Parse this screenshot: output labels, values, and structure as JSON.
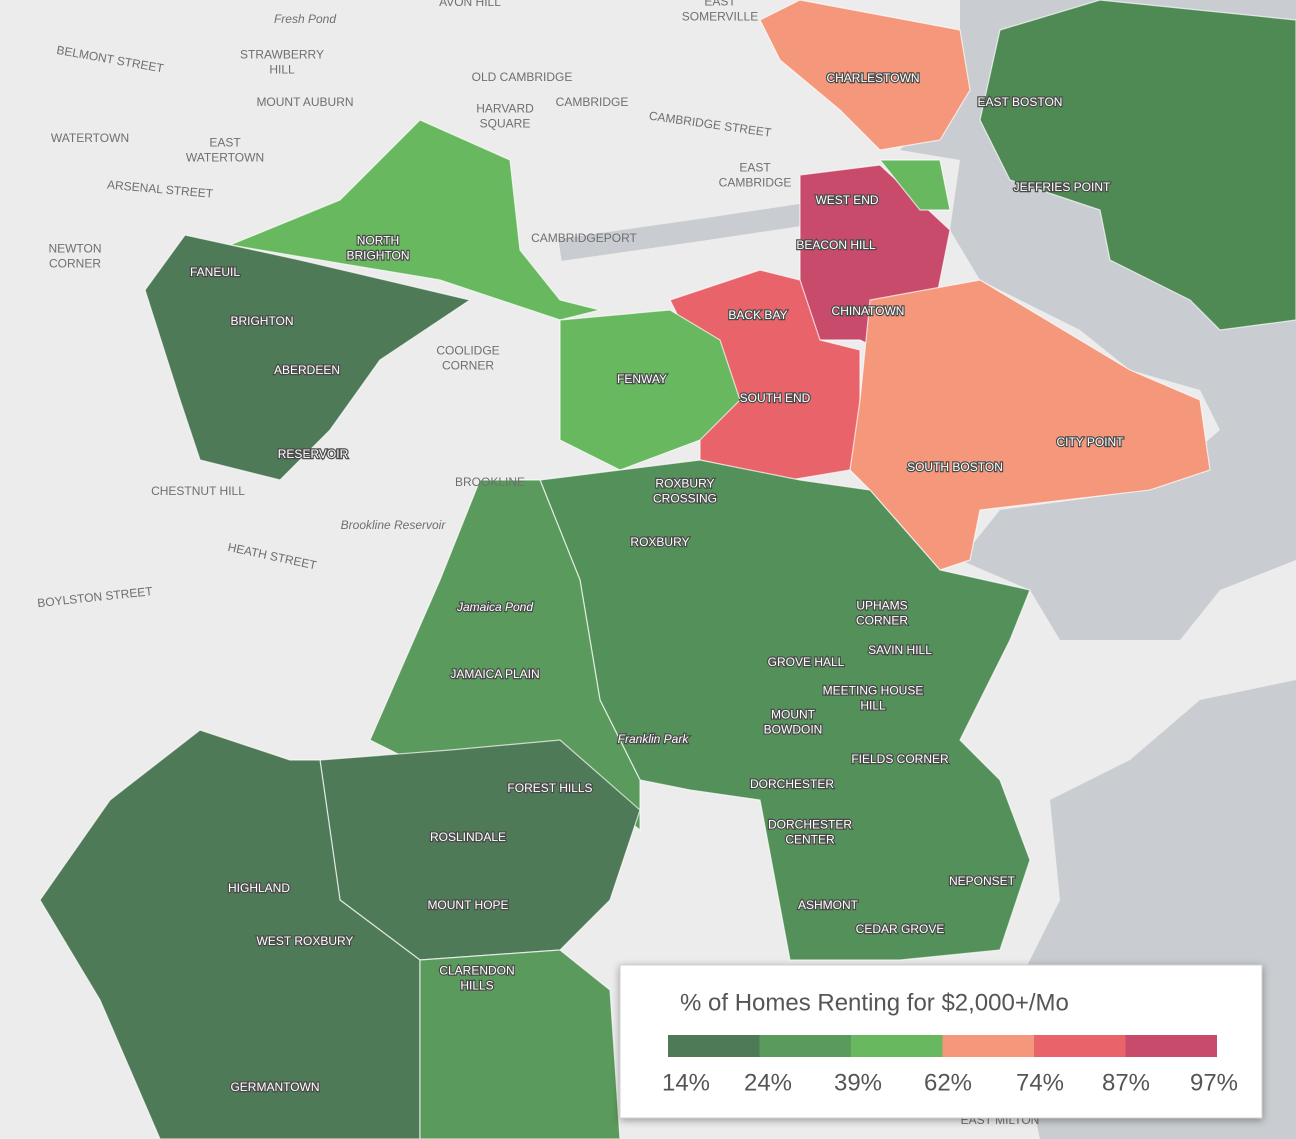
{
  "map_labels": [
    {
      "lines": [
        "AVON HILL"
      ]
    },
    {
      "lines": [
        "EAST",
        "SOMERVILLE"
      ]
    },
    {
      "lines": [
        "Fresh Pond"
      ]
    },
    {
      "lines": [
        "BELMONT STREET"
      ]
    },
    {
      "lines": [
        "STRAWBERRY",
        "HILL"
      ]
    },
    {
      "lines": [
        "OLD CAMBRIDGE"
      ]
    },
    {
      "lines": [
        "MOUNT AUBURN"
      ]
    },
    {
      "lines": [
        "HARVARD",
        "SQUARE"
      ]
    },
    {
      "lines": [
        "CAMBRIDGE"
      ]
    },
    {
      "lines": [
        "CAMBRIDGE STREET"
      ]
    },
    {
      "lines": [
        "WATERTOWN"
      ]
    },
    {
      "lines": [
        "EAST",
        "WATERTOWN"
      ]
    },
    {
      "lines": [
        "EAST",
        "CAMBRIDGE"
      ]
    },
    {
      "lines": [
        "ARSENAL STREET"
      ]
    },
    {
      "lines": [
        "NEWTON",
        "CORNER"
      ]
    },
    {
      "lines": [
        "CAMBRIDGEPORT"
      ]
    },
    {
      "lines": [
        "COOLIDGE",
        "CORNER"
      ]
    },
    {
      "lines": [
        "BROOKLINE"
      ]
    },
    {
      "lines": [
        "CHESTNUT HILL"
      ]
    },
    {
      "lines": [
        "Brookline Reservoir"
      ]
    },
    {
      "lines": [
        "HEATH STREET"
      ]
    },
    {
      "lines": [
        "BOYLSTON STREET"
      ]
    },
    {
      "lines": [
        "Jamaica Pond"
      ]
    },
    {
      "lines": [
        "Franklin Park"
      ]
    },
    {
      "lines": [
        "EAST MILTON"
      ]
    },
    {
      "lines": [
        "CHARLESTOWN"
      ]
    },
    {
      "lines": [
        "EAST BOSTON"
      ]
    },
    {
      "lines": [
        "JEFFRIES POINT"
      ]
    },
    {
      "lines": [
        "WEST END"
      ]
    },
    {
      "lines": [
        "BEACON HILL"
      ]
    },
    {
      "lines": [
        "BACK BAY"
      ]
    },
    {
      "lines": [
        "CHINATOWN"
      ]
    },
    {
      "lines": [
        "SOUTH END"
      ]
    },
    {
      "lines": [
        "FENWAY"
      ]
    },
    {
      "lines": [
        "SOUTH BOSTON"
      ]
    },
    {
      "lines": [
        "CITY POINT"
      ]
    },
    {
      "lines": [
        "NORTH",
        "BRIGHTON"
      ]
    },
    {
      "lines": [
        "FANEUIL"
      ]
    },
    {
      "lines": [
        "BRIGHTON"
      ]
    },
    {
      "lines": [
        "ABERDEEN"
      ]
    },
    {
      "lines": [
        "RESERVOIR"
      ]
    },
    {
      "lines": [
        "ROXBURY",
        "CROSSING"
      ]
    },
    {
      "lines": [
        "ROXBURY"
      ]
    },
    {
      "lines": [
        "UPHAMS",
        "CORNER"
      ]
    },
    {
      "lines": [
        "SAVIN HILL"
      ]
    },
    {
      "lines": [
        "GROVE HALL"
      ]
    },
    {
      "lines": [
        "MEETING HOUSE",
        "HILL"
      ]
    },
    {
      "lines": [
        "MOUNT",
        "BOWDOIN"
      ]
    },
    {
      "lines": [
        "FIELDS CORNER"
      ]
    },
    {
      "lines": [
        "DORCHESTER"
      ]
    },
    {
      "lines": [
        "DORCHESTER",
        "CENTER"
      ]
    },
    {
      "lines": [
        "NEPONSET"
      ]
    },
    {
      "lines": [
        "ASHMONT"
      ]
    },
    {
      "lines": [
        "CEDAR GROVE"
      ]
    },
    {
      "lines": [
        "JAMAICA PLAIN"
      ]
    },
    {
      "lines": [
        "FOREST HILLS"
      ]
    },
    {
      "lines": [
        "ROSLINDALE"
      ]
    },
    {
      "lines": [
        "MOUNT HOPE"
      ]
    },
    {
      "lines": [
        "CLARENDON",
        "HILLS"
      ]
    },
    {
      "lines": [
        "HIGHLAND"
      ]
    },
    {
      "lines": [
        "WEST ROXBURY"
      ]
    },
    {
      "lines": [
        "GERMANTOWN"
      ]
    }
  ],
  "legend": {
    "title": "% of Homes Renting for $2,000+/Mo",
    "colors": [
      "#4f7a57",
      "#5a9a5c",
      "#68b85f",
      "#f5977a",
      "#e8646a",
      "#c84b6b"
    ],
    "breaks": [
      "14%",
      "24%",
      "39%",
      "62%",
      "74%",
      "87%",
      "97%"
    ]
  }
}
